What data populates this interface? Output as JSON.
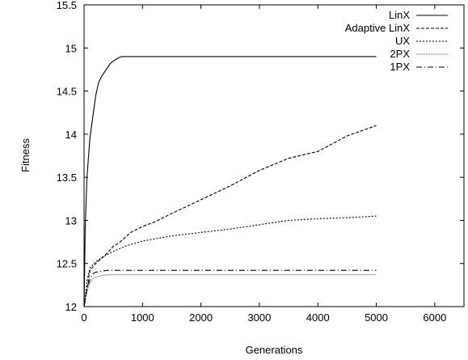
{
  "chart_data": {
    "type": "line",
    "title": "",
    "xlabel": "Generations",
    "ylabel": "Fitness",
    "xlim": [
      0,
      6500
    ],
    "ylim": [
      12,
      15.5
    ],
    "xticks": [
      0,
      1000,
      2000,
      3000,
      4000,
      5000,
      6000
    ],
    "yticks": [
      12,
      12.5,
      13,
      13.5,
      14,
      14.5,
      15,
      15.5
    ],
    "xtick_labels": [
      "0",
      "1000",
      "2000",
      "3000",
      "4000",
      "5000",
      "6000"
    ],
    "ytick_labels": [
      "12",
      "12.5",
      "13",
      "13.5",
      "14",
      "14.5",
      "15",
      "15.5"
    ],
    "grid": false,
    "legend_position": "top-right",
    "series": [
      {
        "name": "LinX",
        "style": "solid",
        "color": "#000000",
        "x": [
          0,
          20,
          50,
          100,
          150,
          200,
          250,
          300,
          350,
          400,
          450,
          500,
          550,
          600,
          650,
          700,
          800,
          1000,
          2000,
          3000,
          4000,
          5000
        ],
        "y": [
          12.0,
          12.9,
          13.5,
          13.95,
          14.2,
          14.45,
          14.6,
          14.67,
          14.72,
          14.77,
          14.82,
          14.85,
          14.87,
          14.89,
          14.9,
          14.9,
          14.9,
          14.9,
          14.9,
          14.9,
          14.9,
          14.9
        ]
      },
      {
        "name": "Adaptive LinX",
        "style": "dashed",
        "color": "#000000",
        "x": [
          0,
          50,
          100,
          200,
          300,
          400,
          500,
          600,
          700,
          800,
          1000,
          1200,
          1500,
          2000,
          2500,
          3000,
          3500,
          4000,
          4500,
          5000
        ],
        "y": [
          12.0,
          12.2,
          12.42,
          12.5,
          12.56,
          12.62,
          12.7,
          12.74,
          12.8,
          12.86,
          12.93,
          12.98,
          13.08,
          13.24,
          13.4,
          13.58,
          13.72,
          13.8,
          13.98,
          14.1
        ]
      },
      {
        "name": "UX",
        "style": "dotted",
        "color": "#000000",
        "x": [
          0,
          50,
          100,
          200,
          300,
          500,
          700,
          1000,
          1500,
          2000,
          2500,
          3000,
          3500,
          4000,
          4500,
          5000
        ],
        "y": [
          12.0,
          12.3,
          12.45,
          12.52,
          12.57,
          12.64,
          12.7,
          12.76,
          12.82,
          12.86,
          12.9,
          12.95,
          13.0,
          13.02,
          13.03,
          13.05
        ]
      },
      {
        "name": "2PX",
        "style": "dotted-fine",
        "color": "#555555",
        "x": [
          0,
          50,
          100,
          150,
          200,
          300,
          400,
          1000,
          2000,
          3000,
          4000,
          5000
        ],
        "y": [
          12.0,
          12.18,
          12.28,
          12.32,
          12.34,
          12.36,
          12.37,
          12.37,
          12.37,
          12.37,
          12.37,
          12.37
        ]
      },
      {
        "name": "1PX",
        "style": "dashdot",
        "color": "#000000",
        "x": [
          0,
          50,
          100,
          150,
          200,
          300,
          400,
          1000,
          2000,
          3000,
          4000,
          5000
        ],
        "y": [
          12.0,
          12.2,
          12.32,
          12.38,
          12.4,
          12.41,
          12.42,
          12.42,
          12.42,
          12.42,
          12.42,
          12.42
        ]
      }
    ]
  }
}
